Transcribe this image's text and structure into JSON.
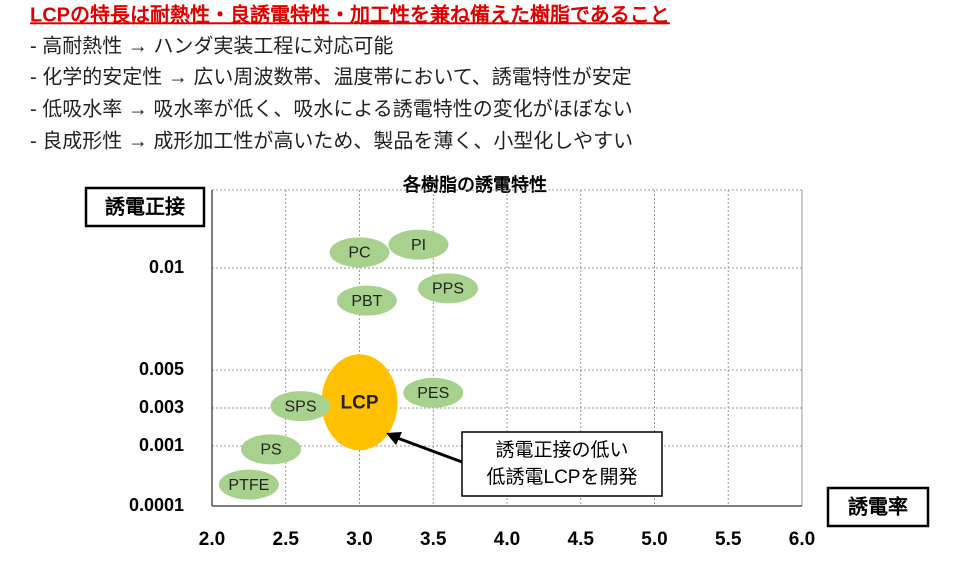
{
  "header": {
    "title": "LCPの特長は耐熱性・良誘電特性・加工性を兼ね備えた樹脂であること",
    "points": [
      "- 高耐熱性  →  ハンダ実装工程に対応可能",
      "- 化学的安定性  →  広い周波数帯、温度帯において、誘電特性が安定",
      "- 低吸水率  →  吸水率が低く、吸水による誘電特性の変化がほぼない",
      "- 良成形性  →  成形加工性が高いため、製品を薄く、小型化しやすい"
    ]
  },
  "chart_data": {
    "type": "bubble-scatter",
    "title": "各樹脂の誘電特性",
    "x_label": "誘電率",
    "y_label": "誘電正接",
    "labels": [
      "PC",
      "PI",
      "PPS",
      "PBT",
      "LCP",
      "PES",
      "SPS",
      "PS",
      "PTFE"
    ],
    "x": [
      3.0,
      3.4,
      3.6,
      3.05,
      3.0,
      3.5,
      2.6,
      2.4,
      2.25
    ],
    "values": [
      0.012,
      0.013,
      0.009,
      0.0084,
      0.0033,
      0.0038,
      0.0031,
      0.00095,
      0.00042
    ],
    "colors": [
      "#a9d18e",
      "#a9d18e",
      "#a9d18e",
      "#a9d18e",
      "#ffc000",
      "#a9d18e",
      "#a9d18e",
      "#a9d18e",
      "#a9d18e"
    ],
    "xlim": [
      2,
      6
    ],
    "xticks": [
      {
        "value": 2,
        "label": "2.0"
      },
      {
        "value": 2.5,
        "label": "2.5"
      },
      {
        "value": 3,
        "label": "3.0"
      },
      {
        "value": 3.5,
        "label": "3.5"
      },
      {
        "value": 4,
        "label": "4.0"
      },
      {
        "value": 4.5,
        "label": "4.5"
      },
      {
        "value": 5,
        "label": "5.0"
      },
      {
        "value": 5.5,
        "label": "5.5"
      },
      {
        "value": 6,
        "label": "6.0"
      }
    ],
    "ylim": [
      0.0001,
      0.02
    ],
    "yticks": [
      0.01,
      0.005,
      0.003,
      0.001,
      0.0001
    ],
    "grid": true,
    "annotation": [
      "誘電正接の低い",
      "低誘電LCPを開発"
    ]
  }
}
